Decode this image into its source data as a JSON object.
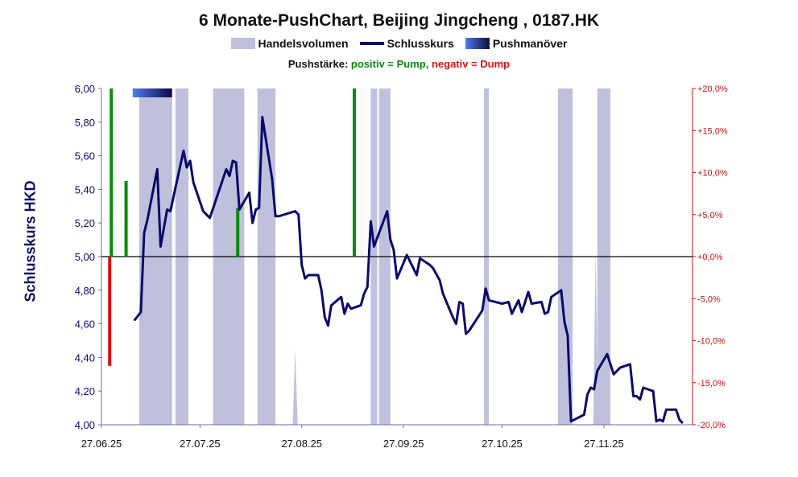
{
  "chart_data": {
    "type": "line",
    "title": "6 Monate-PushChart, Beijing Jingcheng , 0187.HK",
    "ylabel": "Schlusskurs HKD",
    "legend": {
      "volume": "Handelsvolumen",
      "close": "Schlusskurs",
      "push": "Pushmanöver"
    },
    "push_note": {
      "prefix": "Pushstärke:",
      "positive": "positiv = Pump,",
      "negative": "negativ = Dump"
    },
    "ylim": [
      4.0,
      6.0
    ],
    "y_ticks": [
      "6,00",
      "5,80",
      "5,60",
      "5,40",
      "5,20",
      "5,00",
      "4,80",
      "4,60",
      "4,40",
      "4,20",
      "4,00"
    ],
    "y2lim": [
      -20,
      20
    ],
    "y2_ticks": [
      "+20,0%",
      "+15,0%",
      "+10,0%",
      "+5,0%",
      "+0,0%",
      "-5,0%",
      "-10,0%",
      "-15,0%",
      "-20,0%"
    ],
    "x_ticks": [
      {
        "label": "27.06.25",
        "day": 0
      },
      {
        "label": "27.07.25",
        "day": 30
      },
      {
        "label": "27.08.25",
        "day": 61
      },
      {
        "label": "27.09.25",
        "day": 92
      },
      {
        "label": "27.10.25",
        "day": 122
      },
      {
        "label": "27.11.25",
        "day": 153
      }
    ],
    "x_range_days": [
      0,
      180
    ],
    "colors": {
      "line": "#0a0a6a",
      "volume": "#bfc1dc",
      "pump": "#0a8a0a",
      "dump": "#e01010",
      "push_start": "#4e7df0",
      "push_end": "#0a0a40",
      "right_axis": "#cc1111"
    },
    "close_series": [
      {
        "day": 10,
        "value": 4.62
      },
      {
        "day": 12,
        "value": 4.67
      },
      {
        "day": 13,
        "value": 5.14
      },
      {
        "day": 14,
        "value": 5.22
      },
      {
        "day": 17,
        "value": 5.52
      },
      {
        "day": 18,
        "value": 5.06
      },
      {
        "day": 20,
        "value": 5.28
      },
      {
        "day": 21,
        "value": 5.27
      },
      {
        "day": 25,
        "value": 5.63
      },
      {
        "day": 26,
        "value": 5.53
      },
      {
        "day": 27,
        "value": 5.57
      },
      {
        "day": 28,
        "value": 5.44
      },
      {
        "day": 31,
        "value": 5.27
      },
      {
        "day": 33,
        "value": 5.23
      },
      {
        "day": 38,
        "value": 5.52
      },
      {
        "day": 39,
        "value": 5.48
      },
      {
        "day": 40,
        "value": 5.57
      },
      {
        "day": 41,
        "value": 5.56
      },
      {
        "day": 42,
        "value": 5.28
      },
      {
        "day": 45,
        "value": 5.38
      },
      {
        "day": 46,
        "value": 5.2
      },
      {
        "day": 47,
        "value": 5.28
      },
      {
        "day": 48,
        "value": 5.29
      },
      {
        "day": 49,
        "value": 5.83
      },
      {
        "day": 52,
        "value": 5.46
      },
      {
        "day": 53,
        "value": 5.24
      },
      {
        "day": 54,
        "value": 5.24
      },
      {
        "day": 59,
        "value": 5.27
      },
      {
        "day": 60,
        "value": 5.25
      },
      {
        "day": 61,
        "value": 4.95
      },
      {
        "day": 62,
        "value": 4.87
      },
      {
        "day": 63,
        "value": 4.89
      },
      {
        "day": 66,
        "value": 4.89
      },
      {
        "day": 67,
        "value": 4.8
      },
      {
        "day": 68,
        "value": 4.64
      },
      {
        "day": 69,
        "value": 4.59
      },
      {
        "day": 70,
        "value": 4.71
      },
      {
        "day": 73,
        "value": 4.76
      },
      {
        "day": 74,
        "value": 4.66
      },
      {
        "day": 75,
        "value": 4.72
      },
      {
        "day": 76,
        "value": 4.69
      },
      {
        "day": 79,
        "value": 4.71
      },
      {
        "day": 80,
        "value": 4.78
      },
      {
        "day": 81,
        "value": 4.82
      },
      {
        "day": 82,
        "value": 5.21
      },
      {
        "day": 83,
        "value": 5.06
      },
      {
        "day": 87,
        "value": 5.27
      },
      {
        "day": 88,
        "value": 5.1
      },
      {
        "day": 89,
        "value": 5.04
      },
      {
        "day": 90,
        "value": 4.87
      },
      {
        "day": 93,
        "value": 5.01
      },
      {
        "day": 96,
        "value": 4.89
      },
      {
        "day": 97,
        "value": 4.99
      },
      {
        "day": 100,
        "value": 4.95
      },
      {
        "day": 101,
        "value": 4.93
      },
      {
        "day": 103,
        "value": 4.86
      },
      {
        "day": 104,
        "value": 4.78
      },
      {
        "day": 107,
        "value": 4.64
      },
      {
        "day": 108,
        "value": 4.6
      },
      {
        "day": 109,
        "value": 4.73
      },
      {
        "day": 110,
        "value": 4.72
      },
      {
        "day": 111,
        "value": 4.54
      },
      {
        "day": 112,
        "value": 4.56
      },
      {
        "day": 116,
        "value": 4.68
      },
      {
        "day": 117,
        "value": 4.81
      },
      {
        "day": 118,
        "value": 4.74
      },
      {
        "day": 122,
        "value": 4.72
      },
      {
        "day": 124,
        "value": 4.73
      },
      {
        "day": 125,
        "value": 4.66
      },
      {
        "day": 127,
        "value": 4.74
      },
      {
        "day": 128,
        "value": 4.67
      },
      {
        "day": 130,
        "value": 4.79
      },
      {
        "day": 131,
        "value": 4.72
      },
      {
        "day": 134,
        "value": 4.73
      },
      {
        "day": 135,
        "value": 4.66
      },
      {
        "day": 136,
        "value": 4.67
      },
      {
        "day": 137,
        "value": 4.76
      },
      {
        "day": 140,
        "value": 4.8
      },
      {
        "day": 141,
        "value": 4.61
      },
      {
        "day": 142,
        "value": 4.53
      },
      {
        "day": 143,
        "value": 4.02
      },
      {
        "day": 147,
        "value": 4.06
      },
      {
        "day": 148,
        "value": 4.18
      },
      {
        "day": 149,
        "value": 4.22
      },
      {
        "day": 150,
        "value": 4.21
      },
      {
        "day": 151,
        "value": 4.32
      },
      {
        "day": 154,
        "value": 4.42
      },
      {
        "day": 156,
        "value": 4.3
      },
      {
        "day": 158,
        "value": 4.34
      },
      {
        "day": 161,
        "value": 4.36
      },
      {
        "day": 162,
        "value": 4.17
      },
      {
        "day": 163,
        "value": 4.17
      },
      {
        "day": 164,
        "value": 4.15
      },
      {
        "day": 165,
        "value": 4.22
      },
      {
        "day": 168,
        "value": 4.2
      },
      {
        "day": 169,
        "value": 4.02
      },
      {
        "day": 170,
        "value": 4.03
      },
      {
        "day": 171,
        "value": 4.02
      },
      {
        "day": 172,
        "value": 4.09
      },
      {
        "day": 175,
        "value": 4.09
      },
      {
        "day": 176,
        "value": 4.03
      },
      {
        "day": 177,
        "value": 4.01
      }
    ],
    "volume_bands": [
      {
        "start": 11.5,
        "end": 21.5
      },
      {
        "start": 22.5,
        "end": 26.5
      },
      {
        "start": 34,
        "end": 43.5
      },
      {
        "start": 47.5,
        "end": 53
      },
      {
        "start": 82,
        "end": 84
      },
      {
        "start": 84.5,
        "end": 88
      },
      {
        "start": 116.5,
        "end": 118
      },
      {
        "start": 139,
        "end": 143.5
      },
      {
        "start": 151,
        "end": 155
      }
    ],
    "volume_spikes": [
      {
        "day": 59,
        "top": 4.45
      },
      {
        "day": 150.5,
        "top": 5.05
      },
      {
        "day": 153,
        "top": 5.05
      }
    ],
    "push_signals": [
      {
        "day": 3,
        "percent": 20
      },
      {
        "day": 7.5,
        "percent": 9
      },
      {
        "day": 2.5,
        "percent": -13
      },
      {
        "day": 41.5,
        "percent": 5.8
      },
      {
        "day": 77,
        "percent": 20
      }
    ],
    "push_bar": {
      "start_day": 9.5,
      "end_day": 21.5
    }
  }
}
